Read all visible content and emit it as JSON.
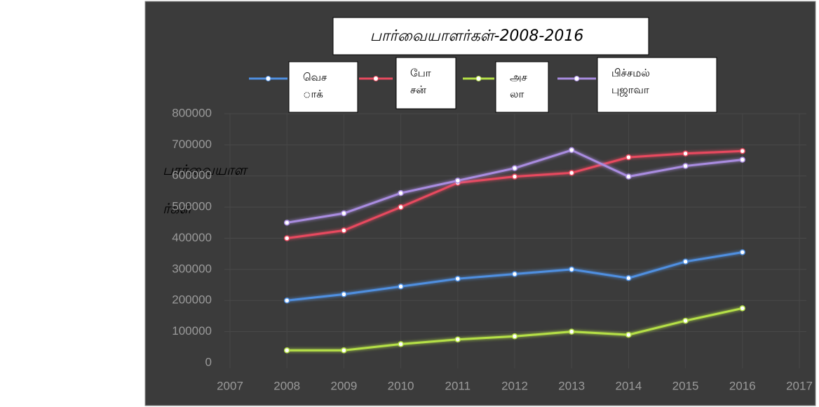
{
  "chart_data": {
    "type": "line",
    "title": "பார்வையாளர்கள்-2008-2016",
    "y_label": "பார்வையாள ர்கள்",
    "x": [
      2008,
      2009,
      2010,
      2011,
      2012,
      2013,
      2014,
      2015,
      2016
    ],
    "xlim": [
      2007,
      2017
    ],
    "xticks": [
      2007,
      2008,
      2009,
      2010,
      2011,
      2012,
      2013,
      2014,
      2015,
      2016,
      2017
    ],
    "ylim": [
      0,
      800000
    ],
    "yticks": [
      0,
      100000,
      200000,
      300000,
      400000,
      500000,
      600000,
      700000,
      800000
    ],
    "grid": true,
    "series": [
      {
        "name": "வெச ாக்",
        "color": "#4f8fe0",
        "values": [
          200000,
          220000,
          245000,
          270000,
          285000,
          300000,
          272000,
          325000,
          355000
        ]
      },
      {
        "name": "போ சன்",
        "color": "#e84a5f",
        "values": [
          400000,
          425000,
          500000,
          578000,
          598000,
          610000,
          660000,
          672000,
          680000
        ]
      },
      {
        "name": "அச லா",
        "color": "#b5e046",
        "values": [
          40000,
          40000,
          60000,
          75000,
          85000,
          100000,
          90000,
          135000,
          175000
        ]
      },
      {
        "name": "பிச்சமல் புஜாவா",
        "color": "#a98ce0",
        "values": [
          450000,
          480000,
          545000,
          585000,
          625000,
          683000,
          598000,
          632000,
          652000
        ]
      }
    ]
  }
}
